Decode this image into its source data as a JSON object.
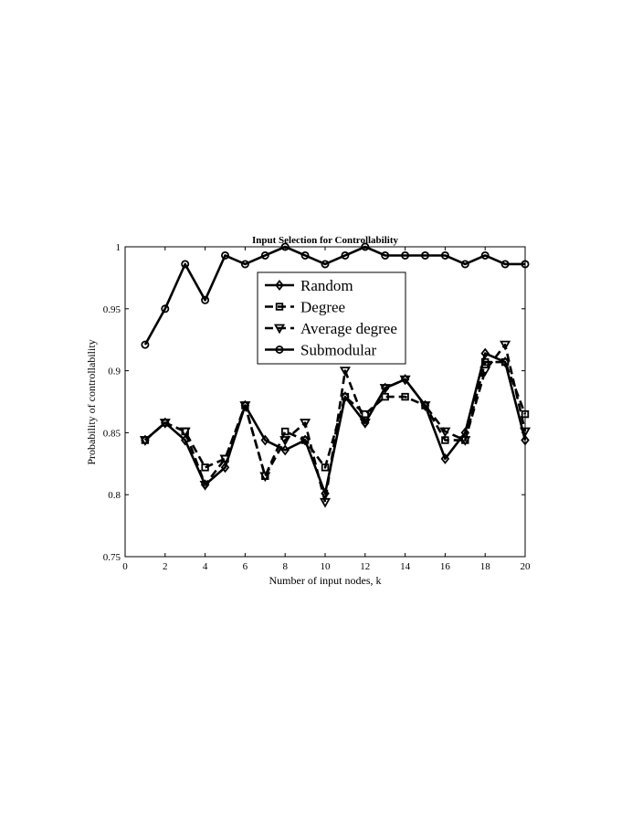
{
  "chart_data": {
    "type": "line",
    "title": "Input Selection for Controllability",
    "xlabel": "Number of input nodes, k",
    "ylabel": "Probability of controllability",
    "xlim": [
      0,
      20
    ],
    "ylim": [
      0.75,
      1
    ],
    "xticks": [
      0,
      2,
      4,
      6,
      8,
      10,
      12,
      14,
      16,
      18,
      20
    ],
    "yticks": [
      0.75,
      0.8,
      0.85,
      0.9,
      0.95,
      1
    ],
    "ytick_labels": [
      "0.75",
      "0.8",
      "0.85",
      "0.9",
      "0.95",
      "1"
    ],
    "grid": false,
    "legend_position": "top-center",
    "x": [
      1,
      2,
      3,
      4,
      5,
      6,
      7,
      8,
      9,
      10,
      11,
      12,
      13,
      14,
      15,
      16,
      17,
      18,
      19,
      20
    ],
    "series": [
      {
        "name": "Random",
        "line": "solid",
        "marker": "diamond",
        "values": [
          0.844,
          0.858,
          0.844,
          0.808,
          0.822,
          0.872,
          0.844,
          0.836,
          0.844,
          0.801,
          0.879,
          0.858,
          0.886,
          0.893,
          0.872,
          0.829,
          0.85,
          0.914,
          0.907,
          0.844
        ]
      },
      {
        "name": "Degree",
        "line": "dashed",
        "marker": "square",
        "values": [
          0.844,
          0.858,
          0.851,
          0.822,
          0.829,
          0.872,
          0.815,
          0.851,
          0.844,
          0.822,
          0.879,
          0.865,
          0.879,
          0.879,
          0.872,
          0.844,
          0.844,
          0.907,
          0.907,
          0.865
        ]
      },
      {
        "name": "Average degree",
        "line": "dashed",
        "marker": "triangle-down",
        "values": [
          0.844,
          0.858,
          0.851,
          0.808,
          0.829,
          0.872,
          0.815,
          0.844,
          0.858,
          0.794,
          0.9,
          0.858,
          0.886,
          0.893,
          0.872,
          0.851,
          0.844,
          0.9,
          0.921,
          0.851
        ]
      },
      {
        "name": "Submodular",
        "line": "solid",
        "marker": "circle",
        "values": [
          0.921,
          0.95,
          0.986,
          0.957,
          0.993,
          0.986,
          0.993,
          1.0,
          0.993,
          0.986,
          0.993,
          1.0,
          0.993,
          0.993,
          0.993,
          0.993,
          0.986,
          0.993,
          0.986,
          0.986
        ]
      }
    ],
    "colors": {
      "line": "#000000",
      "background": "#ffffff",
      "axes": "#000000"
    }
  }
}
